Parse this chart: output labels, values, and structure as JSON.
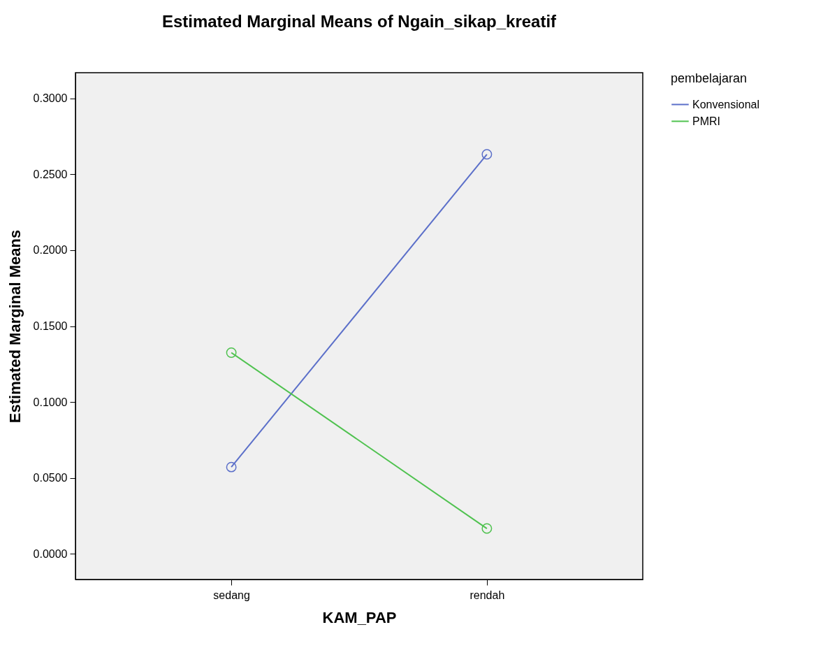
{
  "chart_data": {
    "type": "line",
    "title": "Estimated Marginal Means of Ngain_sikap_kreatif",
    "xlabel": "KAM_PAP",
    "ylabel": "Estimated Marginal Means",
    "legend_title": "pembelajaran",
    "categories": [
      "sedang",
      "rendah"
    ],
    "series": [
      {
        "name": "Konvensional",
        "color": "#5b6fc9",
        "values": [
          0.0571,
          0.2632
        ]
      },
      {
        "name": "PMRI",
        "color": "#4fc24f",
        "values": [
          0.1325,
          0.0166
        ]
      }
    ],
    "ylim": [
      -0.017,
      0.317
    ],
    "yticks": [
      {
        "value": 0,
        "label": "0.0000"
      },
      {
        "value": 0.05,
        "label": "0.0500"
      },
      {
        "value": 0.1,
        "label": "0.1000"
      },
      {
        "value": 0.15,
        "label": "0.1500"
      },
      {
        "value": 0.2,
        "label": "0.2000"
      },
      {
        "value": 0.25,
        "label": "0.2500"
      },
      {
        "value": 0.3,
        "label": "0.3000"
      }
    ],
    "grid": false,
    "legend": "top right",
    "marker": "circle",
    "line_style": "solid"
  }
}
